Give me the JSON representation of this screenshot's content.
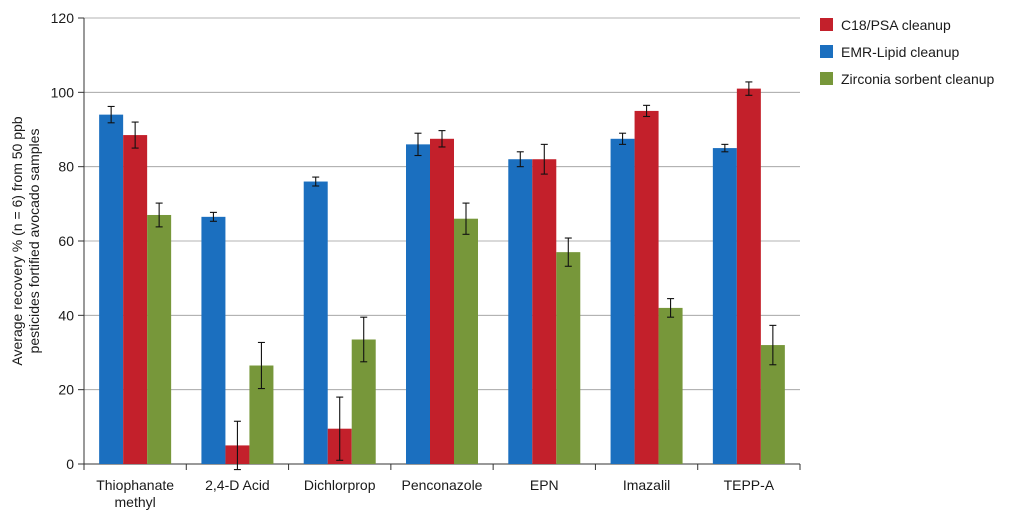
{
  "chart_data": {
    "type": "bar",
    "categories": [
      "Thiophanate methyl",
      "2,4-D Acid",
      "Dichlorprop",
      "Penconazole",
      "EPN",
      "Imazalil",
      "TEPP-A"
    ],
    "category_lines": [
      [
        "Thiophanate",
        "methyl"
      ],
      [
        "2,4-D Acid"
      ],
      [
        "Dichlorprop"
      ],
      [
        "Penconazole"
      ],
      [
        "EPN"
      ],
      [
        "Imazalil"
      ],
      [
        "TEPP-A"
      ]
    ],
    "ylabel_lines": [
      "Average recovery % (n = 6) from 50 ppb",
      "pesticides fortified avocado samples"
    ],
    "ylim": [
      0,
      120
    ],
    "yticks": [
      0,
      20,
      40,
      60,
      80,
      100,
      120
    ],
    "grid": true,
    "legend_position": "top-right",
    "series": [
      {
        "name": "EMR-Lipid cleanup",
        "color": "#1b6fbf",
        "values": [
          94,
          66.5,
          76,
          86,
          82,
          87.5,
          85
        ],
        "errors": [
          2.2,
          1.2,
          1.2,
          3,
          2,
          1.5,
          1
        ]
      },
      {
        "name": "C18/PSA cleanup",
        "color": "#c3202b",
        "values": [
          88.5,
          5,
          9.5,
          87.5,
          82,
          95,
          101
        ],
        "errors": [
          3.5,
          6.5,
          8.5,
          2.2,
          4,
          1.5,
          1.8
        ]
      },
      {
        "name": "Zirconia sorbent cleanup",
        "color": "#77973a",
        "values": [
          67,
          26.5,
          33.5,
          66,
          57,
          42,
          32
        ],
        "errors": [
          3.2,
          6.2,
          6,
          4.2,
          3.8,
          2.5,
          5.3
        ]
      }
    ],
    "legend_order": [
      1,
      0,
      2
    ]
  }
}
